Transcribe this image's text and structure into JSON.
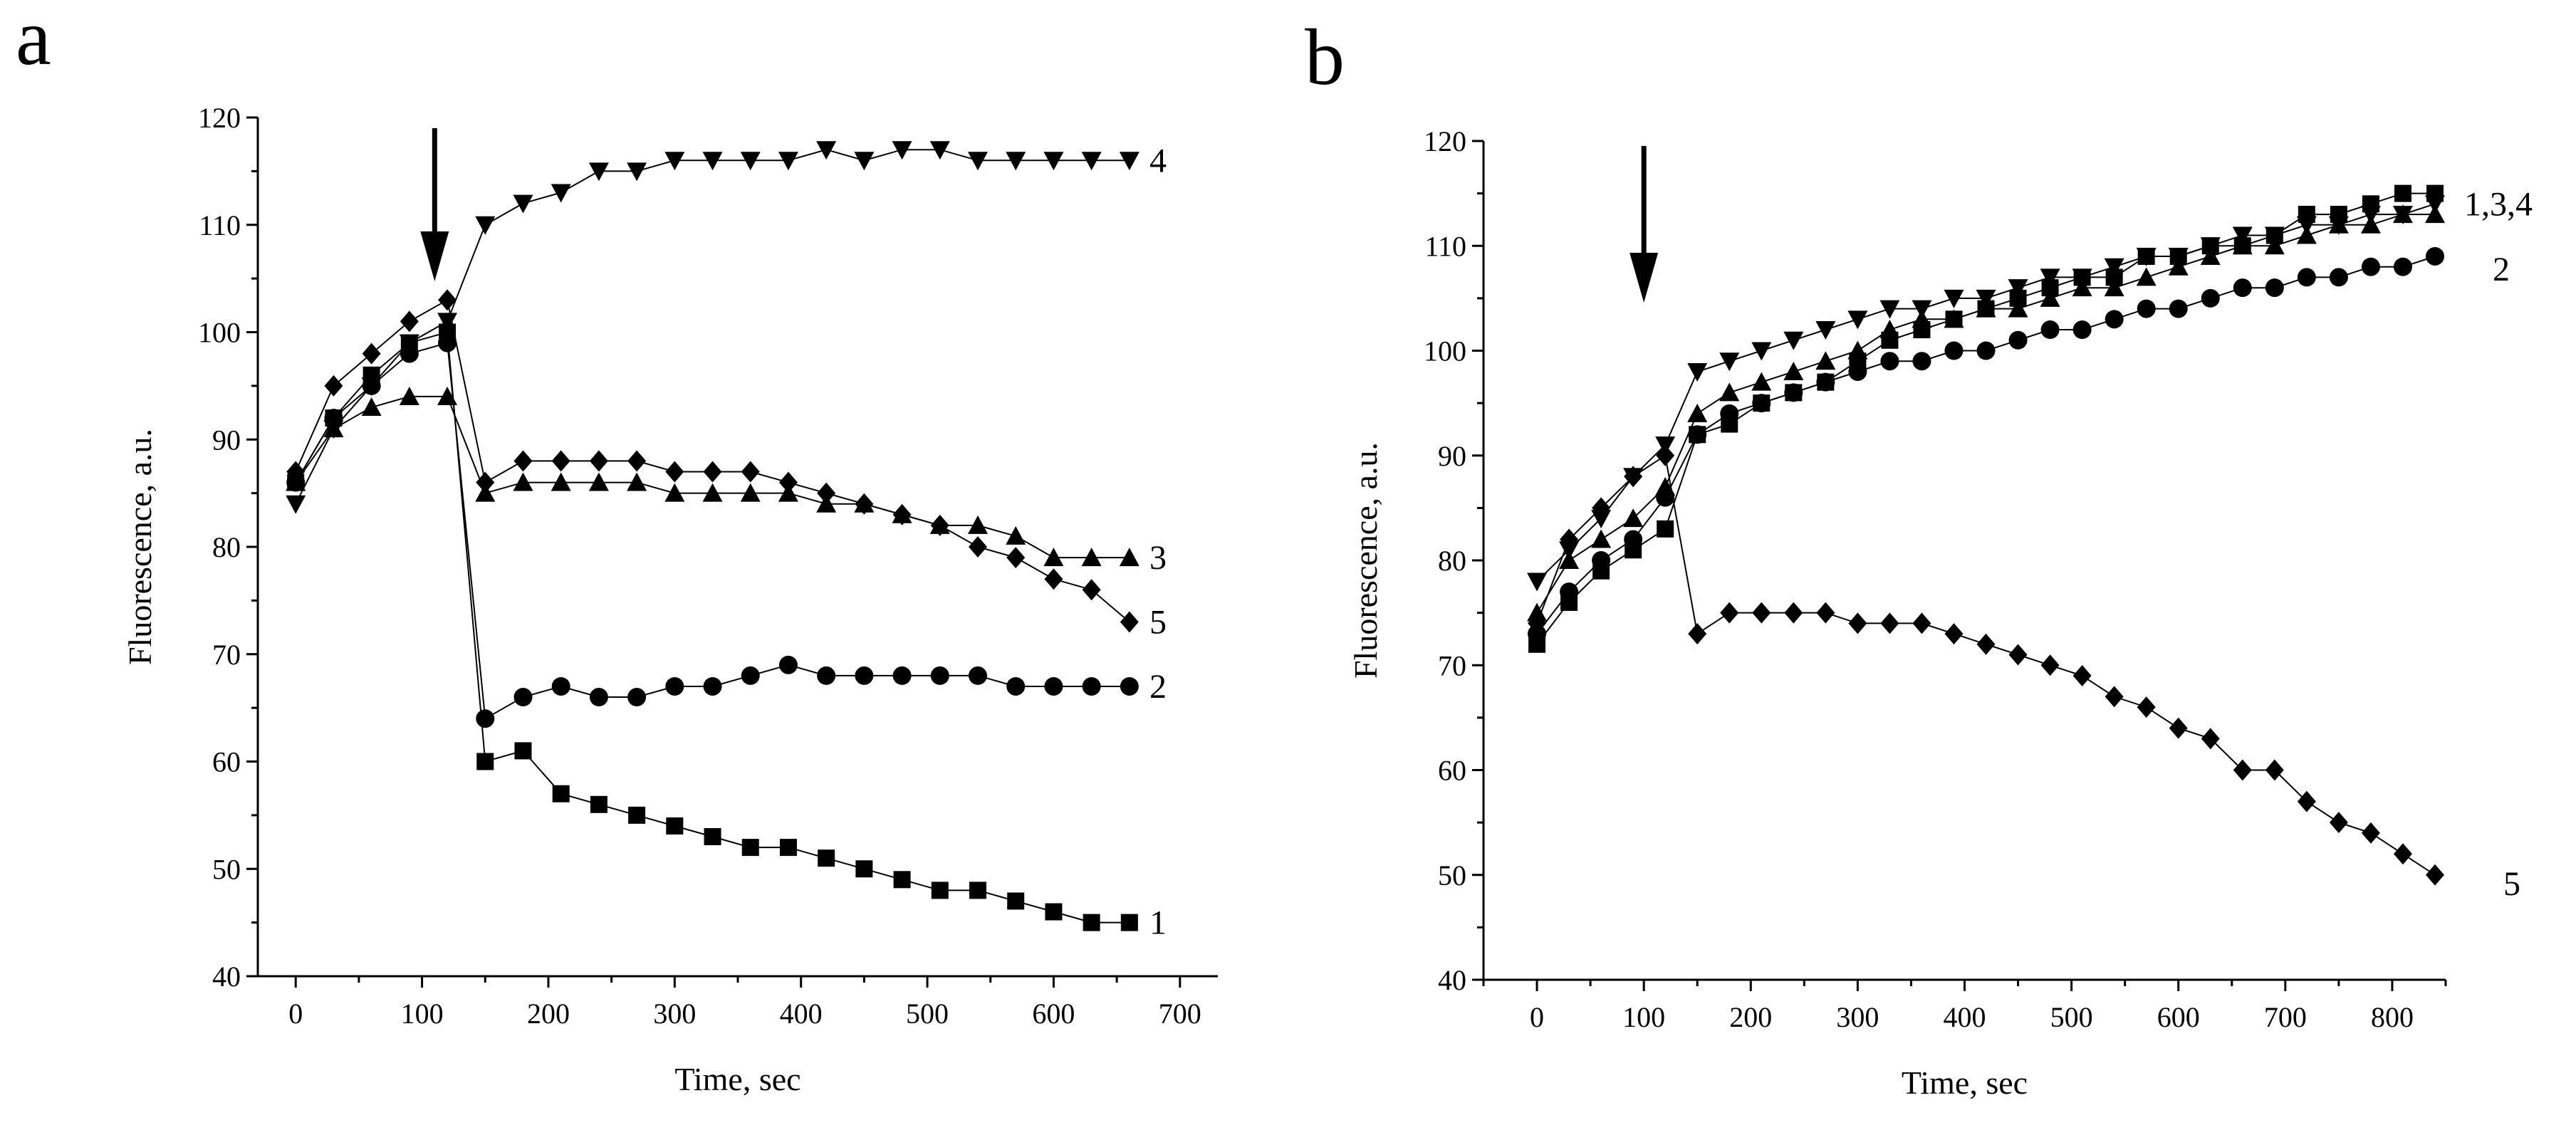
{
  "chart_data": [
    {
      "panel": "a",
      "type": "line",
      "xlabel": "Time, sec",
      "ylabel": "Fluorescence, a.u.",
      "xlim": [
        -30,
        730
      ],
      "ylim": [
        40,
        120
      ],
      "xticks": [
        0,
        100,
        200,
        300,
        400,
        500,
        600,
        700
      ],
      "yticks": [
        40,
        50,
        60,
        70,
        80,
        90,
        100,
        110,
        120
      ],
      "arrow_x": 110,
      "x": [
        0,
        30,
        60,
        90,
        120,
        150,
        180,
        210,
        240,
        270,
        300,
        330,
        360,
        390,
        420,
        450,
        480,
        510,
        540,
        570,
        600,
        630,
        660
      ],
      "series": [
        {
          "name": "1",
          "marker": "square",
          "values": [
            86,
            92,
            96,
            99,
            100,
            60,
            61,
            57,
            56,
            55,
            54,
            53,
            52,
            52,
            51,
            50,
            49,
            48,
            48,
            47,
            46,
            45,
            45
          ]
        },
        {
          "name": "2",
          "marker": "circle",
          "values": [
            86,
            92,
            95,
            98,
            99,
            64,
            66,
            67,
            66,
            66,
            67,
            67,
            68,
            69,
            68,
            68,
            68,
            68,
            68,
            67,
            67,
            67,
            67
          ]
        },
        {
          "name": "3",
          "marker": "triangle-up",
          "values": [
            86,
            91,
            93,
            94,
            94,
            85,
            86,
            86,
            86,
            86,
            85,
            85,
            85,
            85,
            84,
            84,
            83,
            82,
            82,
            81,
            79,
            79,
            79
          ]
        },
        {
          "name": "4",
          "marker": "triangle-down",
          "values": [
            84,
            91,
            95,
            99,
            101,
            110,
            112,
            113,
            115,
            115,
            116,
            116,
            116,
            116,
            117,
            116,
            117,
            117,
            116,
            116,
            116,
            116,
            116
          ]
        },
        {
          "name": "5",
          "marker": "diamond",
          "values": [
            87,
            95,
            98,
            101,
            103,
            86,
            88,
            88,
            88,
            88,
            87,
            87,
            87,
            86,
            85,
            84,
            83,
            82,
            80,
            79,
            77,
            76,
            73
          ]
        }
      ]
    },
    {
      "panel": "b",
      "type": "line",
      "xlabel": "Time, sec",
      "ylabel": "Fluorescence, a.u.",
      "xlim": [
        -50,
        850
      ],
      "ylim": [
        40,
        120
      ],
      "xticks": [
        0,
        100,
        200,
        300,
        400,
        500,
        600,
        700,
        800
      ],
      "yticks": [
        40,
        50,
        60,
        70,
        80,
        90,
        100,
        110,
        120
      ],
      "arrow_x": 100,
      "x": [
        0,
        30,
        60,
        90,
        120,
        150,
        180,
        210,
        240,
        270,
        300,
        330,
        360,
        390,
        420,
        450,
        480,
        510,
        540,
        570,
        600,
        630,
        660,
        690,
        720,
        750,
        780,
        810,
        840
      ],
      "series": [
        {
          "name": "1",
          "marker": "square",
          "values": [
            72,
            76,
            79,
            81,
            83,
            92,
            93,
            95,
            96,
            97,
            99,
            101,
            102,
            103,
            104,
            105,
            106,
            107,
            107,
            109,
            109,
            110,
            110,
            111,
            113,
            113,
            114,
            115,
            115
          ]
        },
        {
          "name": "2",
          "marker": "circle",
          "values": [
            73,
            77,
            80,
            82,
            86,
            92,
            94,
            95,
            96,
            97,
            98,
            99,
            99,
            100,
            100,
            101,
            102,
            102,
            103,
            104,
            104,
            105,
            106,
            106,
            107,
            107,
            108,
            108,
            109
          ]
        },
        {
          "name": "3",
          "marker": "triangle-up",
          "values": [
            75,
            80,
            82,
            84,
            87,
            94,
            96,
            97,
            98,
            99,
            100,
            102,
            103,
            103,
            104,
            104,
            105,
            106,
            106,
            107,
            108,
            109,
            110,
            110,
            111,
            112,
            112,
            113,
            113
          ]
        },
        {
          "name": "4",
          "marker": "triangle-down",
          "values": [
            78,
            81,
            84,
            88,
            91,
            98,
            99,
            100,
            101,
            102,
            103,
            104,
            104,
            105,
            105,
            106,
            107,
            107,
            108,
            109,
            109,
            110,
            111,
            111,
            112,
            112,
            113,
            113,
            114
          ]
        },
        {
          "name": "5",
          "marker": "diamond",
          "values": [
            74,
            82,
            85,
            88,
            90,
            73,
            75,
            75,
            75,
            75,
            74,
            74,
            74,
            73,
            72,
            71,
            70,
            69,
            67,
            66,
            64,
            63,
            60,
            60,
            57,
            55,
            54,
            52,
            50
          ]
        }
      ]
    }
  ],
  "panels": [
    {
      "letter": "a",
      "series_labels": [
        {
          "text": "4",
          "series": "4"
        },
        {
          "text": "3",
          "series": "3"
        },
        {
          "text": "5",
          "series": "5"
        },
        {
          "text": "2",
          "series": "2"
        },
        {
          "text": "1",
          "series": "1"
        }
      ]
    },
    {
      "letter": "b",
      "series_labels": [
        {
          "text": "1,3,4",
          "series": "4"
        },
        {
          "text": "2",
          "series": "2"
        },
        {
          "text": "5",
          "series": "5"
        }
      ]
    }
  ]
}
